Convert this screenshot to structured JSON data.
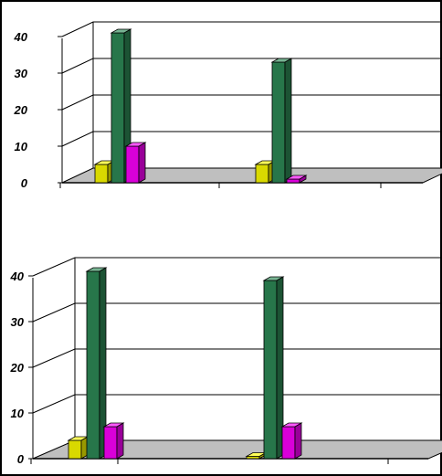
{
  "colors": {
    "yellow": "#ffff00",
    "green": "#2e8b57",
    "magenta": "#ff00ff",
    "floor": "#bfbfbf",
    "grid": "#000000"
  },
  "chart_data": [
    {
      "type": "bar",
      "title": "",
      "xlabel": "",
      "ylabel": "",
      "three_d": true,
      "grid": true,
      "legend": "none",
      "ylim": [
        0,
        40
      ],
      "yticks": [
        "0",
        "10",
        "20",
        "30",
        "40"
      ],
      "categories": [
        "",
        ""
      ],
      "series": [
        {
          "color": "yellow",
          "values": [
            5,
            5
          ]
        },
        {
          "color": "green",
          "values": [
            41,
            33
          ]
        },
        {
          "color": "magenta",
          "values": [
            10,
            1
          ]
        }
      ]
    },
    {
      "type": "bar",
      "title": "",
      "xlabel": "",
      "ylabel": "",
      "three_d": true,
      "grid": true,
      "legend": "none",
      "ylim": [
        0,
        40
      ],
      "yticks": [
        "0",
        "10",
        "20",
        "30",
        "40"
      ],
      "categories": [
        "",
        ""
      ],
      "series": [
        {
          "color": "yellow",
          "values": [
            4,
            0.5
          ]
        },
        {
          "color": "green",
          "values": [
            41,
            39
          ]
        },
        {
          "color": "magenta",
          "values": [
            7,
            7
          ]
        }
      ]
    }
  ]
}
